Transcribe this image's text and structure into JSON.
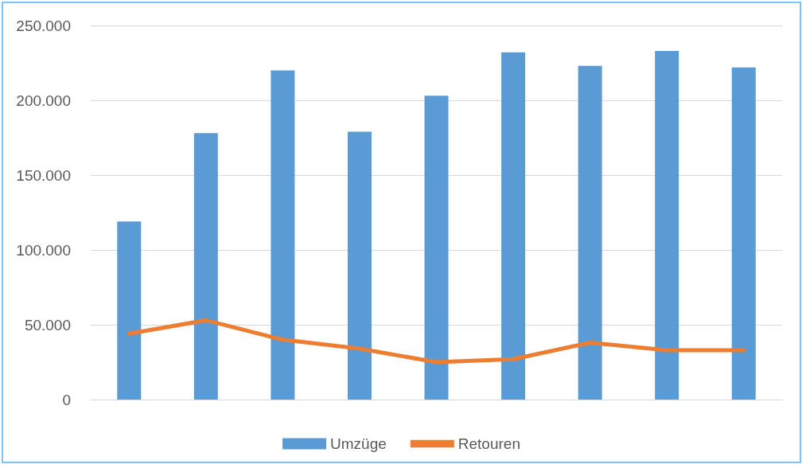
{
  "chart_data": {
    "type": "bar",
    "categories": [
      null,
      null,
      null,
      null,
      null,
      null,
      null,
      null,
      null
    ],
    "series": [
      {
        "name": "Umzüge",
        "color": "#5b9bd5",
        "values": [
          119000,
          178000,
          220000,
          179000,
          203000,
          232000,
          223000,
          233000,
          222000
        ]
      },
      {
        "name": "Retouren",
        "type": "line",
        "color": "#ed7d31",
        "values": [
          44000,
          53000,
          40000,
          34000,
          25000,
          27000,
          38000,
          33000,
          33000
        ]
      }
    ],
    "ylim": [
      0,
      250000
    ],
    "yticks": [
      {
        "value": 0,
        "label": "0"
      },
      {
        "value": 50000,
        "label": "50.000"
      },
      {
        "value": 100000,
        "label": "100.000"
      },
      {
        "value": 150000,
        "label": "150.000"
      },
      {
        "value": 200000,
        "label": "200.000"
      },
      {
        "value": 250000,
        "label": "250.000"
      }
    ],
    "grid": "y",
    "legend": "bottom",
    "marker": "none",
    "line_style": "solid"
  }
}
